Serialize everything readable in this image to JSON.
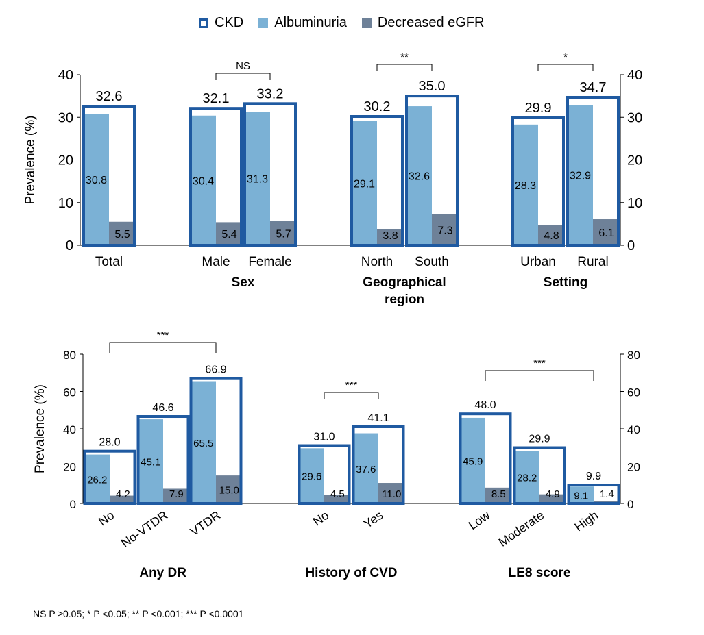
{
  "colors": {
    "ckd": "#1f5aa1",
    "albuminuria": "#7bb1d5",
    "egfr": "#6e8198"
  },
  "legend": [
    {
      "label": "CKD",
      "style": "outline",
      "color": "#1f5aa1"
    },
    {
      "label": "Albuminuria",
      "style": "fill",
      "color": "#7bb1d5"
    },
    {
      "label": "Decreased eGFR",
      "style": "fill",
      "color": "#6e8198"
    }
  ],
  "footnote": "NS P ≥0.05; * P <0.05; ** P <0.001; *** P <0.0001",
  "chart_data": [
    {
      "type": "bar",
      "ylabel": "Prevalence (%)",
      "ylim": [
        0,
        40
      ],
      "yticks": [
        0,
        10,
        20,
        30,
        40
      ],
      "ytick_labels": [
        "0",
        "10",
        "20",
        "30",
        "40"
      ],
      "grid": false,
      "legend_position": "top-center",
      "series_names": [
        "CKD",
        "Albuminuria",
        "Decreased eGFR"
      ],
      "groups": [
        {
          "label": "",
          "label_lines": [],
          "categories": [
            {
              "label": "Total",
              "ckd": 32.6,
              "albuminuria": 30.8,
              "egfr": 5.5,
              "ckd_label": "32.6",
              "alb_label": "30.8",
              "egfr_label": "5.5"
            }
          ]
        },
        {
          "label": "Sex",
          "label_lines": [
            "Sex"
          ],
          "categories": [
            {
              "label": "Male",
              "ckd": 32.1,
              "albuminuria": 30.4,
              "egfr": 5.4,
              "ckd_label": "32.1",
              "alb_label": "30.4",
              "egfr_label": "5.4"
            },
            {
              "label": "Female",
              "ckd": 33.2,
              "albuminuria": 31.3,
              "egfr": 5.7,
              "ckd_label": "33.2",
              "alb_label": "31.3",
              "egfr_label": "5.7"
            }
          ],
          "significance": "NS"
        },
        {
          "label": "Geographical region",
          "label_lines": [
            "Geographical",
            "region"
          ],
          "categories": [
            {
              "label": "North",
              "ckd": 30.2,
              "albuminuria": 29.1,
              "egfr": 3.8,
              "ckd_label": "30.2",
              "alb_label": "29.1",
              "egfr_label": "3.8"
            },
            {
              "label": "South",
              "ckd": 35.0,
              "albuminuria": 32.6,
              "egfr": 7.3,
              "ckd_label": "35.0",
              "alb_label": "32.6",
              "egfr_label": "7.3"
            }
          ],
          "significance": "**"
        },
        {
          "label": "Setting",
          "label_lines": [
            "Setting"
          ],
          "categories": [
            {
              "label": "Urban",
              "ckd": 29.9,
              "albuminuria": 28.3,
              "egfr": 4.8,
              "ckd_label": "29.9",
              "alb_label": "28.3",
              "egfr_label": "4.8"
            },
            {
              "label": "Rural",
              "ckd": 34.7,
              "albuminuria": 32.9,
              "egfr": 6.1,
              "ckd_label": "34.7",
              "alb_label": "32.9",
              "egfr_label": "6.1"
            }
          ],
          "significance": "*"
        }
      ]
    },
    {
      "type": "bar",
      "ylabel": "Prevalence (%)",
      "ylim": [
        0,
        80
      ],
      "yticks": [
        0,
        20,
        40,
        60,
        80
      ],
      "ytick_labels": [
        "0",
        "20",
        "40",
        "60",
        "80"
      ],
      "grid": false,
      "series_names": [
        "CKD",
        "Albuminuria",
        "Decreased eGFR"
      ],
      "groups": [
        {
          "label": "Any DR",
          "label_lines": [
            "Any DR"
          ],
          "categories": [
            {
              "label": "No",
              "ckd": 28.0,
              "albuminuria": 26.2,
              "egfr": 4.2,
              "ckd_label": "28.0",
              "alb_label": "26.2",
              "egfr_label": "4.2"
            },
            {
              "label": "No-VTDR",
              "ckd": 46.6,
              "albuminuria": 45.1,
              "egfr": 7.9,
              "ckd_label": "46.6",
              "alb_label": "45.1",
              "egfr_label": "7.9"
            },
            {
              "label": "VTDR",
              "ckd": 66.9,
              "albuminuria": 65.5,
              "egfr": 15.0,
              "ckd_label": "66.9",
              "alb_label": "65.5",
              "egfr_label": "15.0"
            }
          ],
          "significance": "***"
        },
        {
          "label": "History of CVD",
          "label_lines": [
            "History of CVD"
          ],
          "categories": [
            {
              "label": "No",
              "ckd": 31.0,
              "albuminuria": 29.6,
              "egfr": 4.5,
              "ckd_label": "31.0",
              "alb_label": "29.6",
              "egfr_label": "4.5"
            },
            {
              "label": "Yes",
              "ckd": 41.1,
              "albuminuria": 37.6,
              "egfr": 11.0,
              "ckd_label": "41.1",
              "alb_label": "37.6",
              "egfr_label": "11.0"
            }
          ],
          "significance": "***"
        },
        {
          "label": "LE8 score",
          "label_lines": [
            "LE8 score"
          ],
          "categories": [
            {
              "label": "Low",
              "ckd": 48.0,
              "albuminuria": 45.9,
              "egfr": 8.5,
              "ckd_label": "48.0",
              "alb_label": "45.9",
              "egfr_label": "8.5"
            },
            {
              "label": "Moderate",
              "ckd": 29.9,
              "albuminuria": 28.2,
              "egfr": 4.9,
              "ckd_label": "29.9",
              "alb_label": "28.2",
              "egfr_label": "4.9"
            },
            {
              "label": "High",
              "ckd": 9.9,
              "albuminuria": 9.1,
              "egfr": 1.4,
              "ckd_label": "9.9",
              "alb_label": "9.1",
              "egfr_label": "1.4"
            }
          ],
          "significance": "***"
        }
      ]
    }
  ]
}
